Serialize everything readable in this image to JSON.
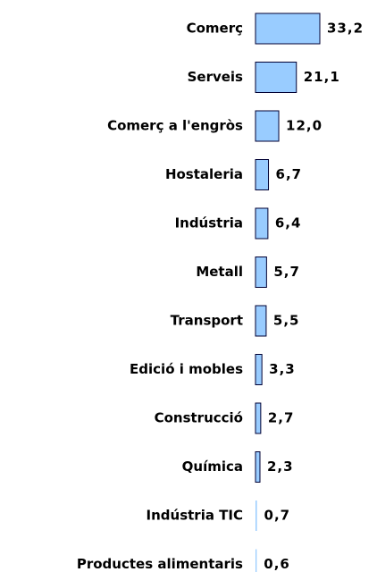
{
  "chart_data": {
    "type": "bar",
    "orientation": "horizontal",
    "categories": [
      "Comerç",
      "Serveis",
      "Comerç a l'engròs",
      "Hostaleria",
      "Indústria",
      "Metall",
      "Transport",
      "Edició i mobles",
      "Construcció",
      "Química",
      "Indústria TIC",
      "Productes alimentaris"
    ],
    "values": [
      33.2,
      21.1,
      12.0,
      6.7,
      6.4,
      5.7,
      5.5,
      3.3,
      2.7,
      2.3,
      0.7,
      0.6
    ],
    "value_labels": [
      "33,2",
      "21,1",
      "12,0",
      "6,7",
      "6,4",
      "5,7",
      "5,5",
      "3,3",
      "2,7",
      "2,3",
      "0,7",
      "0,6"
    ],
    "color": "#99ccff"
  }
}
